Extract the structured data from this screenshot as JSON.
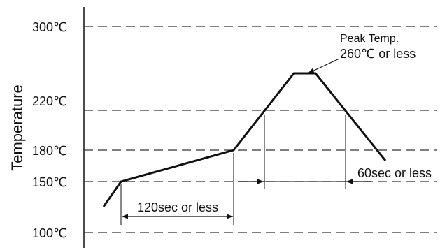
{
  "chart_data": {
    "type": "line",
    "title": "",
    "ylabel": "Temperature",
    "xlabel": "",
    "y_ticks": [
      {
        "value": 300,
        "label": "300℃"
      },
      {
        "value": 220,
        "label": "220℃"
      },
      {
        "value": 180,
        "label": "180℃"
      },
      {
        "value": 150,
        "label": "150℃"
      },
      {
        "value": 100,
        "label": "100℃"
      }
    ],
    "series": [
      {
        "values": [
          132,
          150,
          180,
          260,
          260,
          167
        ]
      }
    ],
    "annotations": {
      "peak_line1": "Peak Temp.",
      "peak_line2": "260℃ or less",
      "preheat_duration": "120sec or less",
      "above_220_duration": "60sec or less"
    }
  }
}
